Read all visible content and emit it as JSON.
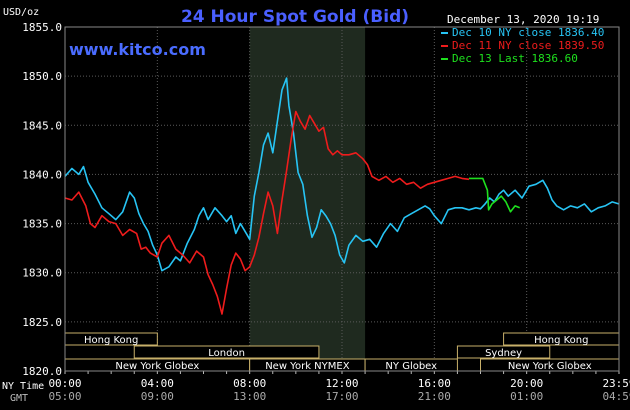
{
  "chart_data": {
    "type": "line",
    "title": "24 Hour Spot Gold (Bid)",
    "website": "www.kitco.com",
    "timestamp": "December 13, 2020 19:19",
    "y_unit_label": "USD/oz",
    "ylim": [
      1820,
      1855
    ],
    "y_ticks": [
      "1855.0",
      "1850.0",
      "1845.0",
      "1840.0",
      "1835.0",
      "1830.0",
      "1825.0",
      "1820.0"
    ],
    "x_row_labels": [
      "NY Time",
      "GMT"
    ],
    "x_ticks_ny": [
      "00:00",
      "04:00",
      "08:00",
      "12:00",
      "16:00",
      "20:00",
      "23:59"
    ],
    "x_ticks_gmt": [
      "05:00",
      "09:00",
      "13:00",
      "17:00",
      "21:00",
      "01:00",
      "04:59"
    ],
    "xlim_hours": [
      0,
      24
    ],
    "shaded_session_hours": [
      8,
      13
    ],
    "grid": true,
    "legend_position": "top-right",
    "sessions": [
      {
        "label": "Hong Kong",
        "start": 0,
        "end": 4,
        "row": 0
      },
      {
        "label": "London",
        "start": 3,
        "end": 11,
        "row": 1
      },
      {
        "label": "New York Globex",
        "start": 0,
        "end": 8,
        "row": 2
      },
      {
        "label": "New York NYMEX",
        "start": 8,
        "end": 13,
        "row": 2
      },
      {
        "label": "NY Globex",
        "start": 13,
        "end": 17,
        "row": 2
      },
      {
        "label": "Hong Kong",
        "start": 19,
        "end": 24,
        "row": 0
      },
      {
        "label": "Sydney",
        "start": 17,
        "end": 21,
        "row": 1
      },
      {
        "label": "New York Globex",
        "start": 18,
        "end": 24,
        "row": 2
      }
    ],
    "series": [
      {
        "name": "Dec 10 NY close 1836.40",
        "color": "#27c4f4",
        "points": [
          [
            0.0,
            1839.8
          ],
          [
            0.3,
            1840.6
          ],
          [
            0.6,
            1840.0
          ],
          [
            0.8,
            1840.8
          ],
          [
            1.0,
            1839.2
          ],
          [
            1.3,
            1838.0
          ],
          [
            1.6,
            1836.6
          ],
          [
            1.9,
            1836.0
          ],
          [
            2.2,
            1835.4
          ],
          [
            2.5,
            1836.2
          ],
          [
            2.8,
            1838.2
          ],
          [
            3.0,
            1837.6
          ],
          [
            3.2,
            1836.0
          ],
          [
            3.4,
            1835.0
          ],
          [
            3.6,
            1834.2
          ],
          [
            3.8,
            1832.8
          ],
          [
            4.0,
            1831.8
          ],
          [
            4.2,
            1830.2
          ],
          [
            4.5,
            1830.6
          ],
          [
            4.8,
            1831.6
          ],
          [
            5.0,
            1831.2
          ],
          [
            5.3,
            1833.0
          ],
          [
            5.6,
            1834.4
          ],
          [
            5.8,
            1835.8
          ],
          [
            6.0,
            1836.6
          ],
          [
            6.2,
            1835.4
          ],
          [
            6.5,
            1836.6
          ],
          [
            6.8,
            1835.8
          ],
          [
            7.0,
            1835.2
          ],
          [
            7.2,
            1835.8
          ],
          [
            7.4,
            1834.0
          ],
          [
            7.6,
            1835.0
          ],
          [
            7.8,
            1834.2
          ],
          [
            8.0,
            1833.4
          ],
          [
            8.2,
            1837.8
          ],
          [
            8.4,
            1840.2
          ],
          [
            8.6,
            1843.0
          ],
          [
            8.8,
            1844.2
          ],
          [
            9.0,
            1842.2
          ],
          [
            9.2,
            1845.4
          ],
          [
            9.4,
            1848.6
          ],
          [
            9.6,
            1849.8
          ],
          [
            9.7,
            1847.0
          ],
          [
            9.9,
            1844.2
          ],
          [
            10.1,
            1840.2
          ],
          [
            10.3,
            1839.0
          ],
          [
            10.5,
            1835.8
          ],
          [
            10.7,
            1833.6
          ],
          [
            10.9,
            1834.6
          ],
          [
            11.1,
            1836.4
          ],
          [
            11.3,
            1835.8
          ],
          [
            11.5,
            1835.0
          ],
          [
            11.7,
            1833.8
          ],
          [
            11.9,
            1831.8
          ],
          [
            12.1,
            1831.0
          ],
          [
            12.3,
            1832.8
          ],
          [
            12.6,
            1833.8
          ],
          [
            12.9,
            1833.2
          ],
          [
            13.2,
            1833.4
          ],
          [
            13.5,
            1832.6
          ],
          [
            13.8,
            1834.0
          ],
          [
            14.1,
            1835.0
          ],
          [
            14.4,
            1834.2
          ],
          [
            14.7,
            1835.6
          ],
          [
            15.0,
            1836.0
          ],
          [
            15.3,
            1836.4
          ],
          [
            15.6,
            1836.8
          ],
          [
            15.8,
            1836.5
          ],
          [
            16.0,
            1835.8
          ],
          [
            16.3,
            1835.0
          ],
          [
            16.6,
            1836.4
          ],
          [
            16.9,
            1836.6
          ],
          [
            17.2,
            1836.6
          ],
          [
            17.5,
            1836.4
          ],
          [
            17.8,
            1836.6
          ],
          [
            18.0,
            1836.5
          ],
          [
            18.2,
            1837.0
          ],
          [
            18.4,
            1837.6
          ],
          [
            18.6,
            1837.2
          ],
          [
            18.8,
            1838.0
          ],
          [
            19.0,
            1838.4
          ],
          [
            19.2,
            1837.8
          ],
          [
            19.5,
            1838.4
          ],
          [
            19.8,
            1837.6
          ],
          [
            20.1,
            1838.8
          ],
          [
            20.4,
            1839.0
          ],
          [
            20.7,
            1839.4
          ],
          [
            20.9,
            1838.6
          ],
          [
            21.1,
            1837.4
          ],
          [
            21.3,
            1836.8
          ],
          [
            21.6,
            1836.4
          ],
          [
            21.9,
            1836.8
          ],
          [
            22.2,
            1836.6
          ],
          [
            22.5,
            1837.0
          ],
          [
            22.8,
            1836.2
          ],
          [
            23.1,
            1836.6
          ],
          [
            23.4,
            1836.8
          ],
          [
            23.7,
            1837.2
          ],
          [
            23.99,
            1837.0
          ]
        ]
      },
      {
        "name": "Dec 11 NY close 1839.50",
        "color": "#ee1c1c",
        "points": [
          [
            0.0,
            1837.6
          ],
          [
            0.3,
            1837.4
          ],
          [
            0.6,
            1838.2
          ],
          [
            0.9,
            1836.8
          ],
          [
            1.1,
            1835.0
          ],
          [
            1.3,
            1834.6
          ],
          [
            1.6,
            1835.8
          ],
          [
            1.9,
            1835.2
          ],
          [
            2.2,
            1835.0
          ],
          [
            2.5,
            1833.8
          ],
          [
            2.8,
            1834.4
          ],
          [
            3.1,
            1834.0
          ],
          [
            3.3,
            1832.4
          ],
          [
            3.5,
            1832.6
          ],
          [
            3.7,
            1832.0
          ],
          [
            4.0,
            1831.6
          ],
          [
            4.2,
            1833.0
          ],
          [
            4.5,
            1833.8
          ],
          [
            4.8,
            1832.4
          ],
          [
            5.1,
            1831.8
          ],
          [
            5.4,
            1831.0
          ],
          [
            5.7,
            1832.2
          ],
          [
            6.0,
            1831.6
          ],
          [
            6.2,
            1829.8
          ],
          [
            6.4,
            1828.8
          ],
          [
            6.6,
            1827.6
          ],
          [
            6.8,
            1825.8
          ],
          [
            7.0,
            1828.4
          ],
          [
            7.2,
            1830.8
          ],
          [
            7.4,
            1832.0
          ],
          [
            7.6,
            1831.4
          ],
          [
            7.8,
            1830.2
          ],
          [
            8.0,
            1830.6
          ],
          [
            8.2,
            1831.8
          ],
          [
            8.4,
            1833.6
          ],
          [
            8.6,
            1836.0
          ],
          [
            8.8,
            1838.2
          ],
          [
            9.0,
            1836.8
          ],
          [
            9.2,
            1834.0
          ],
          [
            9.4,
            1837.4
          ],
          [
            9.6,
            1840.4
          ],
          [
            9.8,
            1843.6
          ],
          [
            10.0,
            1846.4
          ],
          [
            10.2,
            1845.4
          ],
          [
            10.4,
            1844.6
          ],
          [
            10.6,
            1846.0
          ],
          [
            10.8,
            1845.2
          ],
          [
            11.0,
            1844.4
          ],
          [
            11.2,
            1844.8
          ],
          [
            11.4,
            1842.6
          ],
          [
            11.6,
            1842.0
          ],
          [
            11.8,
            1842.4
          ],
          [
            12.0,
            1842.0
          ],
          [
            12.3,
            1842.0
          ],
          [
            12.6,
            1842.2
          ],
          [
            12.9,
            1841.6
          ],
          [
            13.1,
            1841.0
          ],
          [
            13.3,
            1839.8
          ],
          [
            13.6,
            1839.4
          ],
          [
            13.9,
            1839.8
          ],
          [
            14.2,
            1839.2
          ],
          [
            14.5,
            1839.6
          ],
          [
            14.8,
            1839.0
          ],
          [
            15.1,
            1839.2
          ],
          [
            15.4,
            1838.6
          ],
          [
            15.7,
            1839.0
          ],
          [
            16.0,
            1839.2
          ],
          [
            16.3,
            1839.4
          ],
          [
            16.6,
            1839.6
          ],
          [
            16.9,
            1839.8
          ],
          [
            17.2,
            1839.6
          ],
          [
            17.5,
            1839.5
          ]
        ]
      },
      {
        "name": "Dec 13 Last 1836.60",
        "color": "#1ee01e",
        "points": [
          [
            17.5,
            1839.6
          ],
          [
            17.8,
            1839.6
          ],
          [
            18.1,
            1839.6
          ],
          [
            18.3,
            1838.4
          ],
          [
            18.35,
            1836.4
          ],
          [
            18.5,
            1837.0
          ],
          [
            18.7,
            1837.4
          ],
          [
            18.9,
            1837.8
          ],
          [
            19.1,
            1837.2
          ],
          [
            19.3,
            1836.2
          ],
          [
            19.5,
            1836.8
          ],
          [
            19.7,
            1836.6
          ]
        ]
      }
    ]
  }
}
